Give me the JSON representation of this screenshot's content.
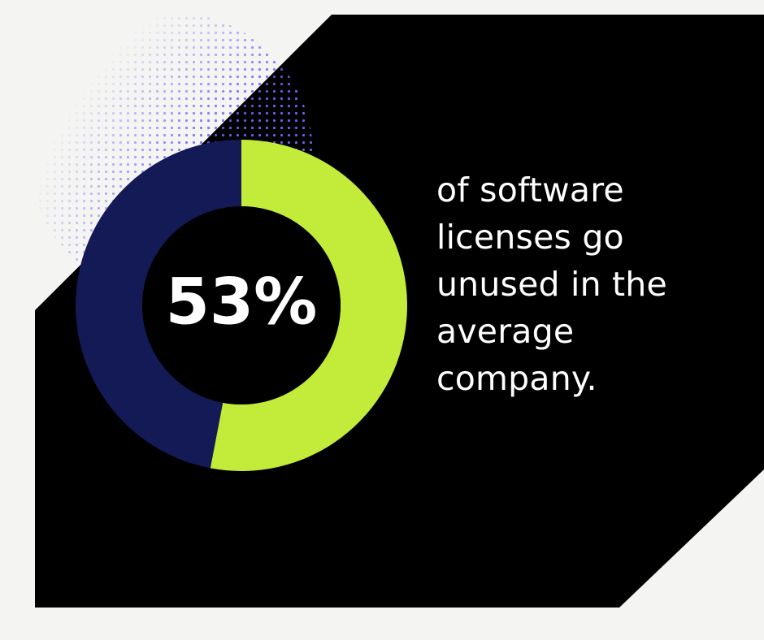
{
  "chart_data": {
    "type": "pie",
    "style": "donut",
    "slices": [
      {
        "label": "",
        "value": 53,
        "color": "#c2eb3a"
      },
      {
        "label": "",
        "value": 47,
        "color": "#131a55"
      }
    ],
    "center_label": "53%",
    "title": "",
    "annotation_lines": [
      "of software",
      "licenses go",
      "unused in the",
      "average",
      "company."
    ]
  },
  "colors": {
    "background": "#f4f4f2",
    "panel": "#000000",
    "accent_lime": "#c2eb3a",
    "accent_navy": "#131a55",
    "dots": "#6a5cf0",
    "text": "#ffffff"
  }
}
